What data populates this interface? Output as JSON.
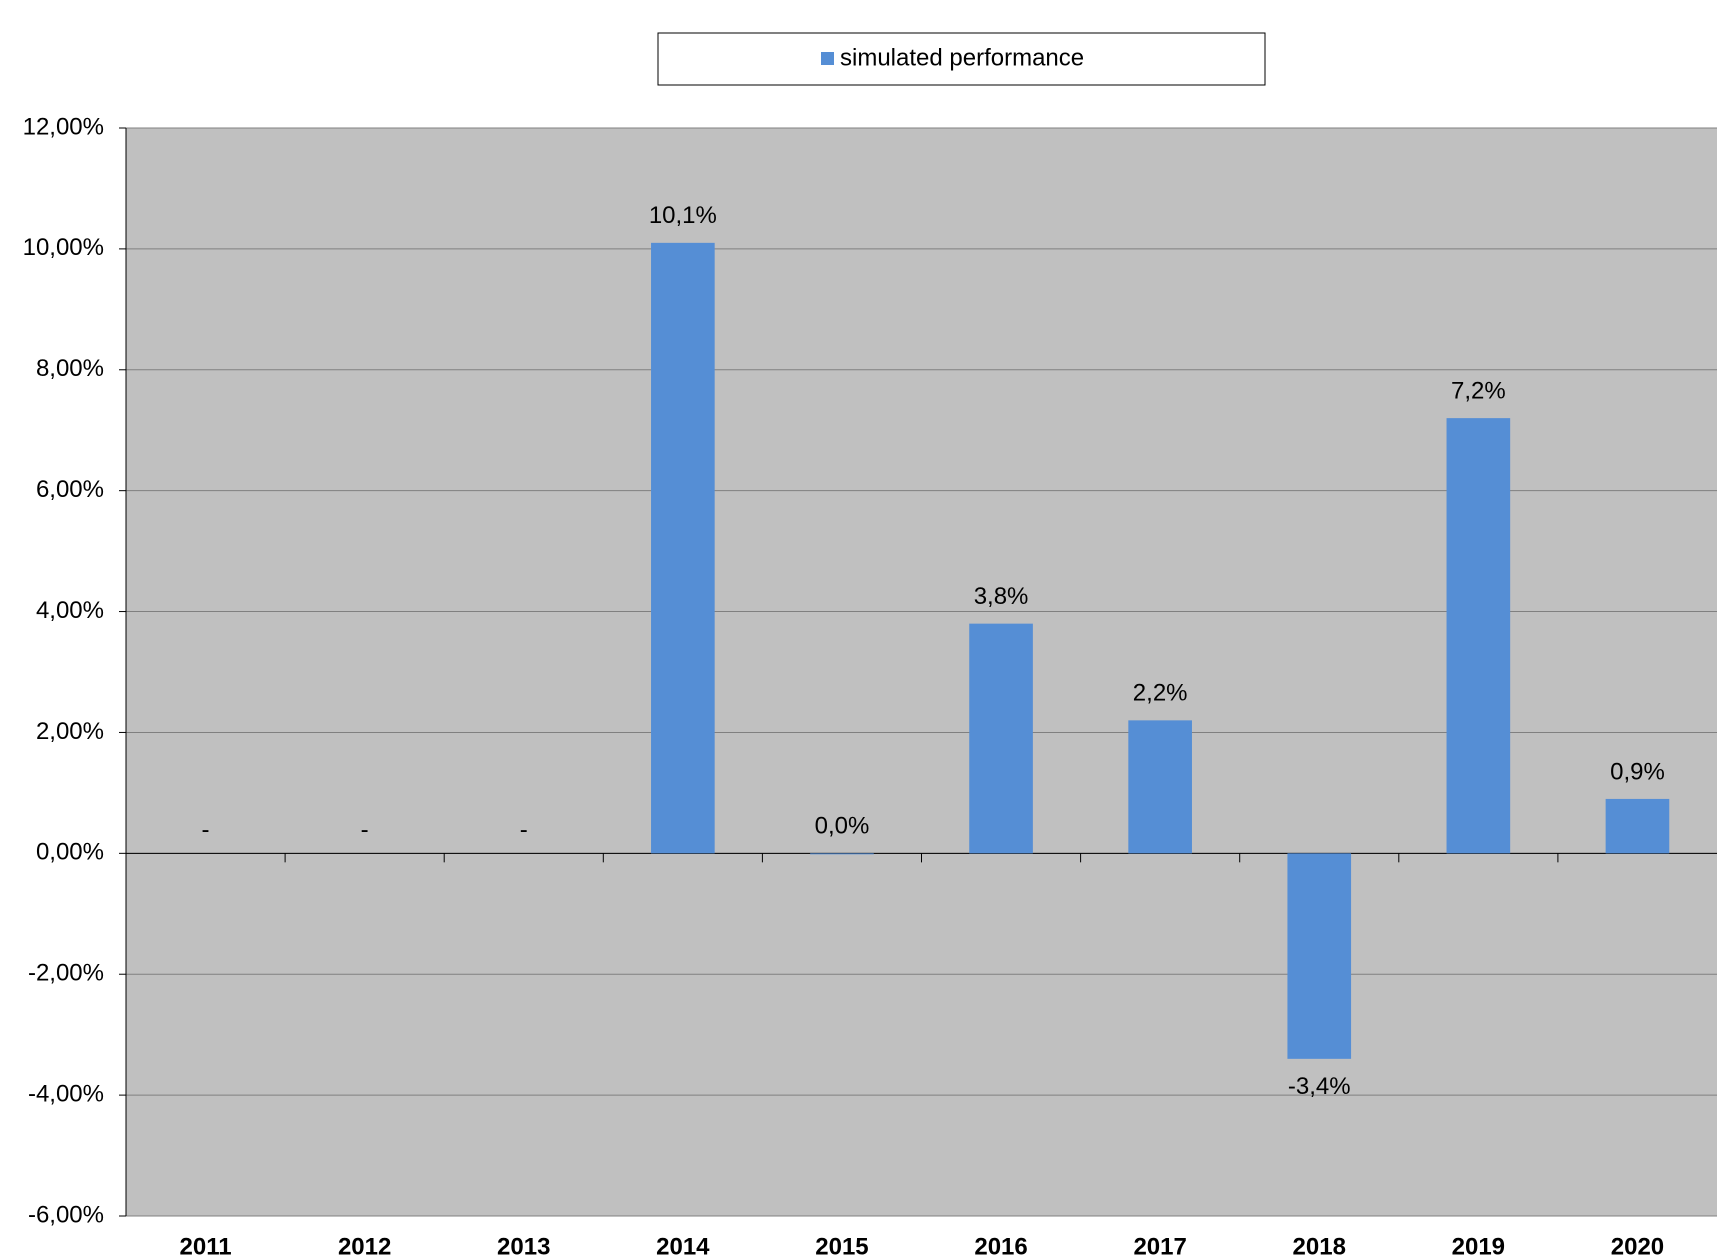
{
  "chart_data": {
    "type": "bar",
    "categories": [
      "2011",
      "2012",
      "2013",
      "2014",
      "2015",
      "2016",
      "2017",
      "2018",
      "2019",
      "2020"
    ],
    "series": [
      {
        "name": "simulated performance",
        "color": "#558ed5",
        "values": [
          null,
          null,
          null,
          10.1,
          0.0,
          3.8,
          2.2,
          -3.4,
          7.2,
          0.9
        ],
        "value_labels": [
          "-",
          "-",
          "-",
          "10,1%",
          "0,0%",
          "3,8%",
          "2,2%",
          "-3,4%",
          "7,2%",
          "0,9%"
        ]
      }
    ],
    "negative_label_color": "#ff0000",
    "ylim": [
      -6,
      12
    ],
    "yticks": [
      {
        "value": -6,
        "label": "-6,00%"
      },
      {
        "value": -4,
        "label": "-4,00%"
      },
      {
        "value": -2,
        "label": "-2,00%"
      },
      {
        "value": 0,
        "label": "0,00%"
      },
      {
        "value": 2,
        "label": "2,00%"
      },
      {
        "value": 4,
        "label": "4,00%"
      },
      {
        "value": 6,
        "label": "6,00%"
      },
      {
        "value": 8,
        "label": "8,00%"
      },
      {
        "value": 10,
        "label": "10,00%"
      },
      {
        "value": 12,
        "label": "12,00%"
      }
    ],
    "grid": true,
    "plot_background": "#c0c0c0",
    "legend": "top"
  }
}
